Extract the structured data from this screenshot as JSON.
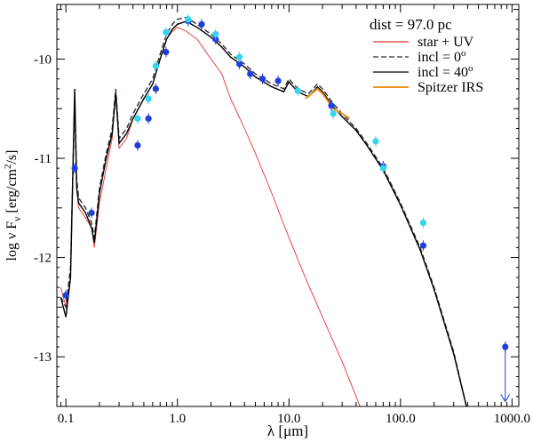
{
  "chart_data": {
    "type": "line",
    "title": "",
    "xlabel": "λ [μm]",
    "ylabel": "log ν F_ν [erg/cm²/s]",
    "ylabel_parts": {
      "prefix": "log ν F",
      "sub": "ν",
      "unit": "[erg/cm",
      "sup": "2",
      "unit_end": "/s]"
    },
    "xscale": "log",
    "xlim": [
      0.083,
      1150
    ],
    "ylim": [
      -13.5,
      -9.45
    ],
    "x_ticks": [
      {
        "value": 0.1,
        "label": "0.1"
      },
      {
        "value": 1,
        "label": "1.0"
      },
      {
        "value": 10,
        "label": "10.0"
      },
      {
        "value": 100,
        "label": "100.0"
      },
      {
        "value": 1000,
        "label": "1000.0"
      }
    ],
    "y_ticks": [
      {
        "value": -10,
        "label": "-10"
      },
      {
        "value": -11,
        "label": "-11"
      },
      {
        "value": -12,
        "label": "-12"
      },
      {
        "value": -13,
        "label": "-13"
      }
    ],
    "legend_position": "top-right",
    "legend": {
      "title": "dist = 97.0 pc",
      "entries": [
        {
          "label": "star + UV",
          "color": "#e8352e",
          "style": "solid"
        },
        {
          "label": "incl = 0",
          "sup": "o",
          "color": "#333333",
          "style": "dashed"
        },
        {
          "label": "incl = 40",
          "sup": "o",
          "color": "#000000",
          "style": "solid"
        },
        {
          "label": "Spitzer IRS",
          "color": "#f0941e",
          "style": "solid"
        }
      ]
    },
    "series": [
      {
        "name": "star + UV",
        "color": "#e8352e",
        "points": [
          [
            0.09,
            -12.3
          ],
          [
            0.1,
            -12.5
          ],
          [
            0.11,
            -12.2
          ],
          [
            0.12,
            -10.3
          ],
          [
            0.125,
            -11.3
          ],
          [
            0.13,
            -11.5
          ],
          [
            0.15,
            -11.6
          ],
          [
            0.17,
            -11.7
          ],
          [
            0.18,
            -11.9
          ],
          [
            0.2,
            -11.45
          ],
          [
            0.23,
            -11.1
          ],
          [
            0.26,
            -10.8
          ],
          [
            0.28,
            -10.3
          ],
          [
            0.3,
            -10.9
          ],
          [
            0.35,
            -10.8
          ],
          [
            0.4,
            -10.6
          ],
          [
            0.5,
            -10.4
          ],
          [
            0.6,
            -10.25
          ],
          [
            0.7,
            -10.0
          ],
          [
            0.8,
            -9.8
          ],
          [
            0.9,
            -9.72
          ],
          [
            1.0,
            -9.68
          ],
          [
            1.2,
            -9.72
          ],
          [
            1.5,
            -9.8
          ],
          [
            2.0,
            -10.0
          ],
          [
            2.5,
            -10.15
          ],
          [
            3.0,
            -10.4
          ],
          [
            4.0,
            -10.7
          ],
          [
            5.0,
            -10.95
          ],
          [
            7.0,
            -11.35
          ],
          [
            10.0,
            -11.8
          ],
          [
            14.0,
            -12.2
          ],
          [
            20.0,
            -12.6
          ],
          [
            30.0,
            -13.05
          ],
          [
            40.0,
            -13.4
          ],
          [
            45.0,
            -13.55
          ]
        ]
      },
      {
        "name": "incl = 0",
        "color": "#333333",
        "dashed": true,
        "points": [
          [
            0.09,
            -12.4
          ],
          [
            0.1,
            -12.5
          ],
          [
            0.11,
            -12.1
          ],
          [
            0.12,
            -10.4
          ],
          [
            0.125,
            -11.2
          ],
          [
            0.13,
            -11.4
          ],
          [
            0.15,
            -11.5
          ],
          [
            0.17,
            -11.65
          ],
          [
            0.18,
            -11.8
          ],
          [
            0.2,
            -11.3
          ],
          [
            0.23,
            -10.95
          ],
          [
            0.26,
            -10.7
          ],
          [
            0.28,
            -10.3
          ],
          [
            0.3,
            -10.8
          ],
          [
            0.35,
            -10.7
          ],
          [
            0.4,
            -10.55
          ],
          [
            0.5,
            -10.35
          ],
          [
            0.6,
            -10.2
          ],
          [
            0.7,
            -9.95
          ],
          [
            0.8,
            -9.75
          ],
          [
            0.9,
            -9.65
          ],
          [
            1.0,
            -9.6
          ],
          [
            1.2,
            -9.58
          ],
          [
            1.5,
            -9.65
          ],
          [
            2.0,
            -9.75
          ],
          [
            2.5,
            -9.85
          ],
          [
            3.0,
            -9.95
          ],
          [
            4.0,
            -10.05
          ],
          [
            5.0,
            -10.15
          ],
          [
            7.0,
            -10.25
          ],
          [
            9.0,
            -10.3
          ],
          [
            10.0,
            -10.2
          ],
          [
            12.0,
            -10.3
          ],
          [
            15.0,
            -10.35
          ],
          [
            18.0,
            -10.25
          ],
          [
            20.0,
            -10.3
          ],
          [
            25.0,
            -10.45
          ],
          [
            30.0,
            -10.55
          ],
          [
            40.0,
            -10.7
          ],
          [
            50.0,
            -10.85
          ],
          [
            70.0,
            -11.1
          ],
          [
            100.0,
            -11.45
          ],
          [
            150.0,
            -11.9
          ],
          [
            200.0,
            -12.3
          ],
          [
            300.0,
            -12.95
          ],
          [
            400.0,
            -13.55
          ]
        ]
      },
      {
        "name": "incl = 40",
        "color": "#000000",
        "points": [
          [
            0.09,
            -12.4
          ],
          [
            0.1,
            -12.6
          ],
          [
            0.11,
            -12.2
          ],
          [
            0.12,
            -10.3
          ],
          [
            0.125,
            -11.3
          ],
          [
            0.13,
            -11.45
          ],
          [
            0.15,
            -11.55
          ],
          [
            0.17,
            -11.7
          ],
          [
            0.18,
            -11.85
          ],
          [
            0.2,
            -11.35
          ],
          [
            0.23,
            -11.0
          ],
          [
            0.26,
            -10.75
          ],
          [
            0.28,
            -10.35
          ],
          [
            0.3,
            -10.85
          ],
          [
            0.35,
            -10.75
          ],
          [
            0.4,
            -10.6
          ],
          [
            0.5,
            -10.4
          ],
          [
            0.6,
            -10.25
          ],
          [
            0.7,
            -10.0
          ],
          [
            0.8,
            -9.8
          ],
          [
            0.9,
            -9.7
          ],
          [
            1.0,
            -9.65
          ],
          [
            1.2,
            -9.62
          ],
          [
            1.5,
            -9.68
          ],
          [
            2.0,
            -9.78
          ],
          [
            2.5,
            -9.88
          ],
          [
            3.0,
            -9.98
          ],
          [
            4.0,
            -10.08
          ],
          [
            5.0,
            -10.18
          ],
          [
            7.0,
            -10.28
          ],
          [
            9.0,
            -10.33
          ],
          [
            10.0,
            -10.23
          ],
          [
            12.0,
            -10.33
          ],
          [
            15.0,
            -10.38
          ],
          [
            18.0,
            -10.28
          ],
          [
            20.0,
            -10.33
          ],
          [
            25.0,
            -10.48
          ],
          [
            30.0,
            -10.58
          ],
          [
            40.0,
            -10.72
          ],
          [
            50.0,
            -10.87
          ],
          [
            70.0,
            -11.12
          ],
          [
            100.0,
            -11.47
          ],
          [
            150.0,
            -11.92
          ],
          [
            200.0,
            -12.32
          ],
          [
            300.0,
            -12.97
          ],
          [
            400.0,
            -13.55
          ]
        ]
      },
      {
        "name": "Spitzer IRS",
        "color": "#f0941e",
        "points": [
          [
            14.0,
            -10.4
          ],
          [
            16.0,
            -10.35
          ],
          [
            18.0,
            -10.3
          ],
          [
            20.0,
            -10.35
          ],
          [
            25.0,
            -10.5
          ],
          [
            30.0,
            -10.55
          ],
          [
            35.0,
            -10.6
          ]
        ]
      }
    ],
    "photometry": [
      {
        "color": "#1f3fdc",
        "points": [
          [
            0.1,
            -12.38
          ],
          [
            0.12,
            -11.1
          ],
          [
            0.17,
            -11.55
          ],
          [
            0.44,
            -10.87
          ],
          [
            0.55,
            -10.6
          ],
          [
            0.64,
            -10.3
          ],
          [
            0.79,
            -9.93
          ],
          [
            1.25,
            -9.62
          ],
          [
            1.65,
            -9.65
          ],
          [
            2.2,
            -9.8
          ],
          [
            3.6,
            -10.05
          ],
          [
            4.5,
            -10.15
          ],
          [
            5.8,
            -10.2
          ],
          [
            8.0,
            -10.22
          ],
          [
            24.0,
            -10.47
          ],
          [
            70.0,
            -11.08
          ],
          [
            160.0,
            -11.88
          ],
          [
            870.0,
            -12.9
          ]
        ]
      },
      {
        "color": "#33d6f0",
        "points": [
          [
            0.44,
            -10.6
          ],
          [
            0.55,
            -10.4
          ],
          [
            0.64,
            -10.07
          ],
          [
            0.79,
            -9.73
          ],
          [
            1.25,
            -9.6
          ],
          [
            2.2,
            -9.75
          ],
          [
            3.6,
            -9.98
          ],
          [
            12.0,
            -10.32
          ],
          [
            25.0,
            -10.55
          ],
          [
            60.0,
            -10.83
          ],
          [
            70.0,
            -11.1
          ],
          [
            160.0,
            -11.65
          ]
        ]
      }
    ]
  }
}
